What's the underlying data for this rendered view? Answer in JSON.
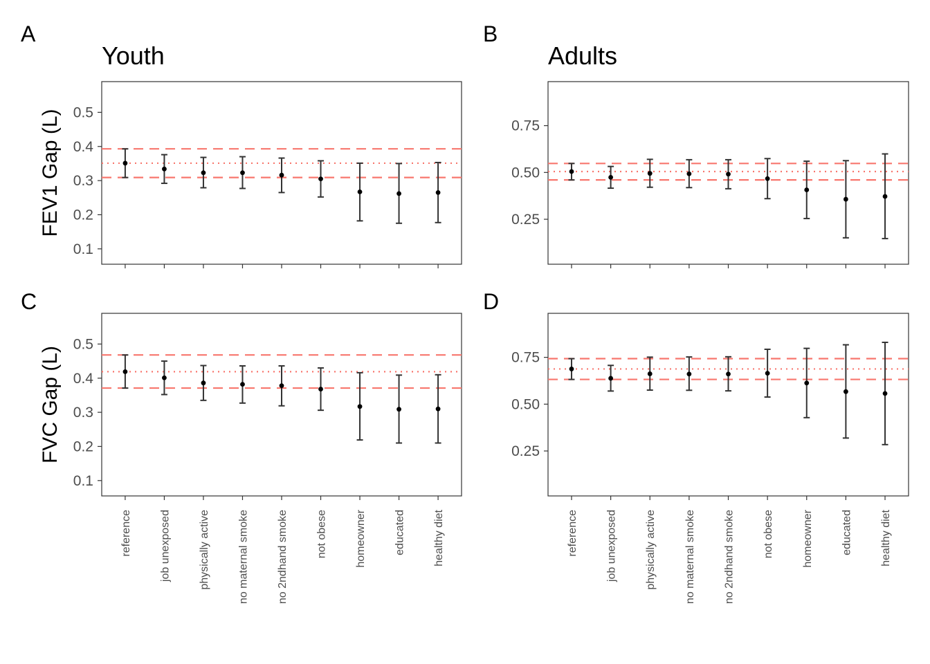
{
  "colors": {
    "reference_line": "#F8766D",
    "error_bar": "#333333",
    "point": "#000000",
    "panel_border": "#333333",
    "tick_text": "#4d4d4d"
  },
  "chart_data": [
    {
      "tag": "A",
      "type": "scatter",
      "title": "Youth",
      "ylabel": "FEV1 Gap (L)",
      "ylim": [
        0.055,
        0.59
      ],
      "yticks": [
        0.1,
        0.2,
        0.3,
        0.4,
        0.5
      ],
      "ytick_labels": [
        "0.1",
        "0.2",
        "0.3",
        "0.4",
        "0.5"
      ],
      "categories": [
        "reference",
        "job unexposed",
        "physically active",
        "no maternal smoke",
        "no 2ndhand smoke",
        "not obese",
        "homeowner",
        "educated",
        "healthy diet"
      ],
      "values": [
        0.351,
        0.334,
        0.323,
        0.323,
        0.316,
        0.305,
        0.267,
        0.262,
        0.265
      ],
      "lower": [
        0.309,
        0.292,
        0.279,
        0.277,
        0.265,
        0.252,
        0.182,
        0.175,
        0.177
      ],
      "upper": [
        0.393,
        0.376,
        0.368,
        0.37,
        0.366,
        0.358,
        0.351,
        0.35,
        0.353
      ],
      "reference_lines": {
        "estimate": 0.351,
        "lower": 0.309,
        "upper": 0.393
      },
      "show_xticklabels": false
    },
    {
      "tag": "B",
      "type": "scatter",
      "title": "Adults",
      "ylabel": "",
      "ylim": [
        0.01,
        0.985
      ],
      "yticks": [
        0.25,
        0.5,
        0.75
      ],
      "ytick_labels": [
        "0.25",
        "0.50",
        "0.75"
      ],
      "categories": [
        "reference",
        "job unexposed",
        "physically active",
        "no maternal smoke",
        "no 2ndhand smoke",
        "not obese",
        "homeowner",
        "educated",
        "healthy diet"
      ],
      "values": [
        0.505,
        0.474,
        0.495,
        0.493,
        0.491,
        0.467,
        0.407,
        0.357,
        0.372
      ],
      "lower": [
        0.46,
        0.416,
        0.421,
        0.419,
        0.413,
        0.36,
        0.254,
        0.151,
        0.147
      ],
      "upper": [
        0.548,
        0.532,
        0.57,
        0.568,
        0.568,
        0.574,
        0.56,
        0.563,
        0.599
      ],
      "reference_lines": {
        "estimate": 0.505,
        "lower": 0.46,
        "upper": 0.548
      },
      "show_xticklabels": false
    },
    {
      "tag": "C",
      "type": "scatter",
      "title": "",
      "ylabel": "FVC Gap (L)",
      "ylim": [
        0.055,
        0.59
      ],
      "yticks": [
        0.1,
        0.2,
        0.3,
        0.4,
        0.5
      ],
      "ytick_labels": [
        "0.1",
        "0.2",
        "0.3",
        "0.4",
        "0.5"
      ],
      "categories": [
        "reference",
        "job unexposed",
        "physically active",
        "no maternal smoke",
        "no 2ndhand smoke",
        "not obese",
        "homeowner",
        "educated",
        "healthy diet"
      ],
      "values": [
        0.419,
        0.401,
        0.386,
        0.382,
        0.378,
        0.368,
        0.317,
        0.309,
        0.31
      ],
      "lower": [
        0.371,
        0.352,
        0.335,
        0.327,
        0.319,
        0.306,
        0.219,
        0.21,
        0.21
      ],
      "upper": [
        0.468,
        0.45,
        0.437,
        0.436,
        0.436,
        0.43,
        0.416,
        0.409,
        0.41
      ],
      "reference_lines": {
        "estimate": 0.419,
        "lower": 0.371,
        "upper": 0.468
      },
      "show_xticklabels": true
    },
    {
      "tag": "D",
      "type": "scatter",
      "title": "",
      "ylabel": "",
      "ylim": [
        0.01,
        0.985
      ],
      "yticks": [
        0.25,
        0.5,
        0.75
      ],
      "ytick_labels": [
        "0.25",
        "0.50",
        "0.75"
      ],
      "categories": [
        "reference",
        "job unexposed",
        "physically active",
        "no maternal smoke",
        "no 2ndhand smoke",
        "not obese",
        "homeowner",
        "educated",
        "healthy diet"
      ],
      "values": [
        0.688,
        0.638,
        0.662,
        0.661,
        0.661,
        0.665,
        0.613,
        0.567,
        0.557
      ],
      "lower": [
        0.632,
        0.57,
        0.575,
        0.574,
        0.571,
        0.538,
        0.428,
        0.319,
        0.284
      ],
      "upper": [
        0.743,
        0.707,
        0.751,
        0.752,
        0.753,
        0.793,
        0.798,
        0.817,
        0.83
      ],
      "reference_lines": {
        "estimate": 0.688,
        "lower": 0.632,
        "upper": 0.743
      },
      "show_xticklabels": true
    }
  ]
}
